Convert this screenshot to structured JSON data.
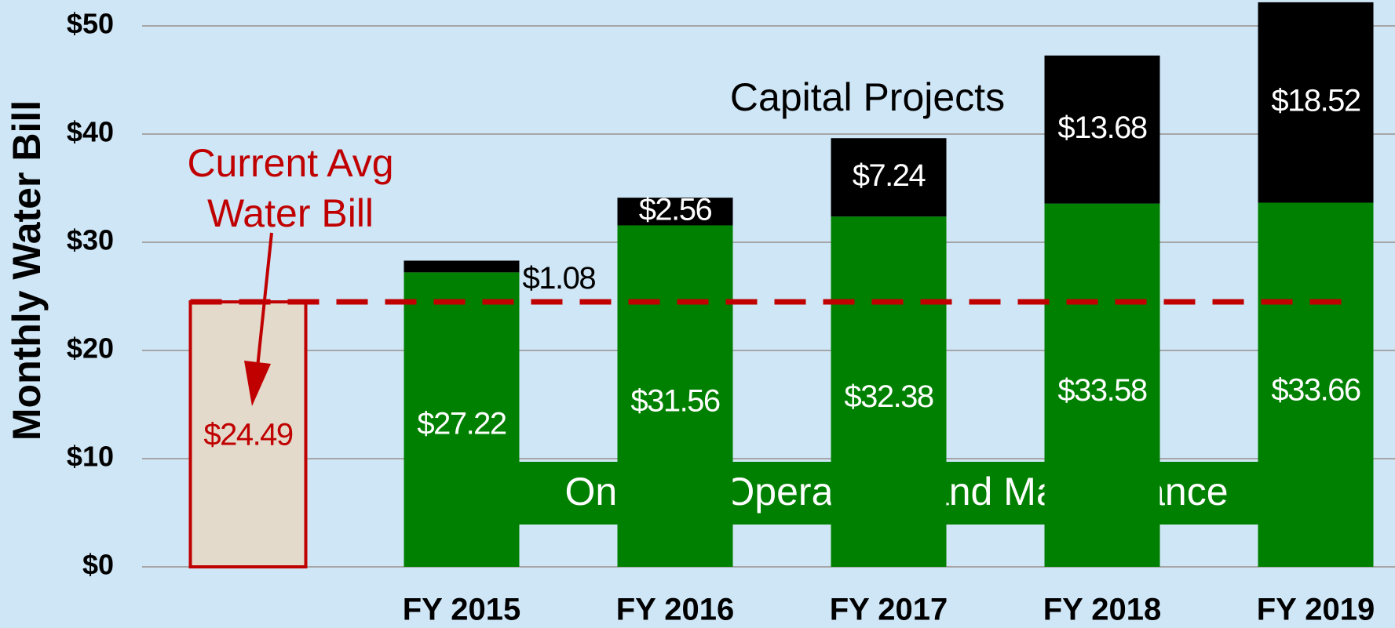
{
  "chart_data": {
    "type": "bar",
    "stacked": true,
    "y_label": "Monthly Water Bill",
    "categories": [
      null,
      "FY 2015",
      "FY 2016",
      "FY 2017",
      "FY 2018",
      "FY 2019"
    ],
    "series": [
      {
        "name": "Ongoing Operations and Maintenance",
        "color": "#008000",
        "values": [
          null,
          27.22,
          31.56,
          32.38,
          33.58,
          33.66
        ],
        "value_labels": [
          null,
          "$27.22",
          "$31.56",
          "$32.38",
          "$33.58",
          "$33.66"
        ]
      },
      {
        "name": "Capital Projects",
        "color": "#000000",
        "values": [
          null,
          1.08,
          2.56,
          7.24,
          13.68,
          18.52
        ],
        "value_labels": [
          null,
          "$1.08",
          "$2.56",
          "$7.24",
          "$13.68",
          "$18.52"
        ]
      }
    ],
    "current": {
      "label": [
        "Current Avg",
        "Water Bill"
      ],
      "value": 24.49,
      "value_label": "$24.49",
      "color": "#c00000",
      "fill": "#e3dacb"
    },
    "ylim": [
      0,
      50
    ],
    "yticks": [
      {
        "value": 0,
        "label": "$0"
      },
      {
        "value": 10,
        "label": "$10"
      },
      {
        "value": 20,
        "label": "$20"
      },
      {
        "value": 30,
        "label": "$30"
      },
      {
        "value": 40,
        "label": "$40"
      },
      {
        "value": 50,
        "label": "$50"
      }
    ],
    "grid": true
  }
}
